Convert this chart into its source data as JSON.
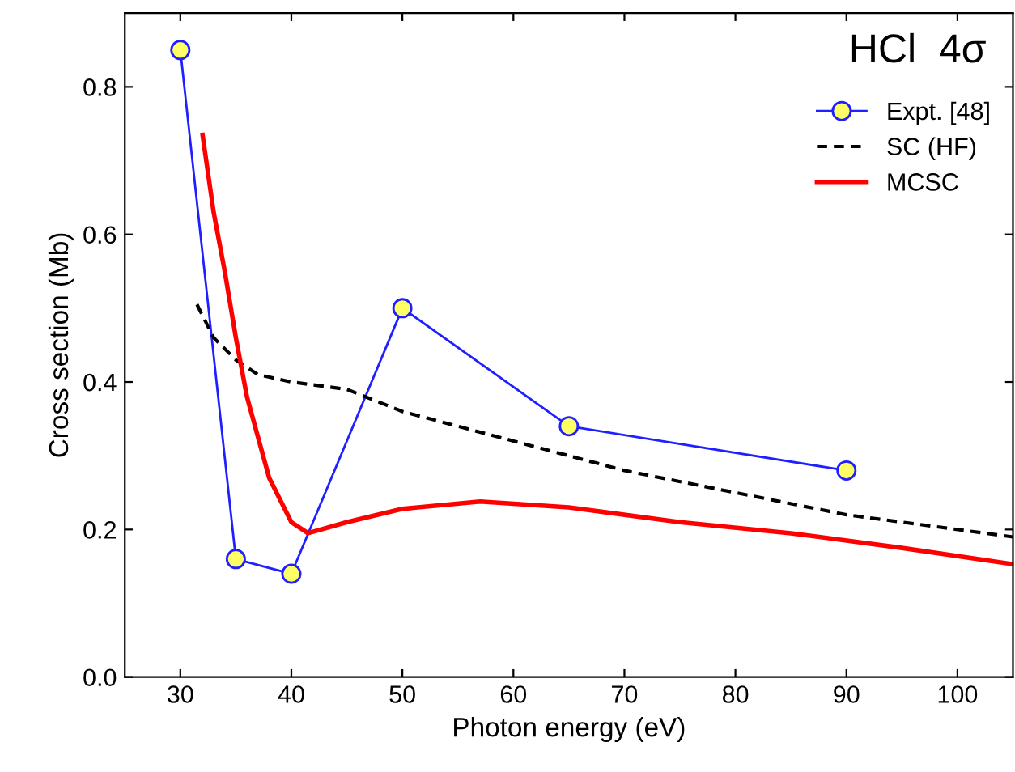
{
  "chart_data": {
    "type": "line",
    "title": "HCl  4σ",
    "xlabel": "Photon energy (eV)",
    "ylabel": "Cross section (Mb)",
    "xlim": [
      25,
      105
    ],
    "xticks": [
      30,
      40,
      50,
      60,
      70,
      80,
      90,
      100
    ],
    "ylim": [
      0,
      0.9
    ],
    "yticks": [
      {
        "value": 0,
        "label": "0.0"
      },
      0.2,
      0.4,
      0.6,
      0.8
    ],
    "grid": false,
    "legend": "top right",
    "series": [
      {
        "name": "Expt. [48]",
        "color": "#1f1fff",
        "marker": "circle",
        "line_style": "solid",
        "x": [
          30,
          35,
          40,
          50,
          65,
          90
        ],
        "values": [
          0.85,
          0.16,
          0.14,
          0.5,
          0.34,
          0.28
        ]
      },
      {
        "name": "SC (HF)",
        "color": "#000000",
        "marker": "none",
        "line_style": "dashed",
        "x": [
          31.5,
          33,
          35,
          37,
          40,
          45,
          50,
          60,
          70,
          80,
          90,
          105
        ],
        "values": [
          0.505,
          0.46,
          0.43,
          0.41,
          0.4,
          0.39,
          0.36,
          0.32,
          0.28,
          0.25,
          0.22,
          0.19
        ]
      },
      {
        "name": "MCSC",
        "color": "#ff0000",
        "marker": "none",
        "line_style": "solid",
        "x": [
          32,
          33,
          34,
          35,
          36,
          38,
          40,
          41.5,
          45,
          50,
          57,
          65,
          75,
          85,
          95,
          105
        ],
        "values": [
          0.735,
          0.63,
          0.55,
          0.46,
          0.38,
          0.27,
          0.21,
          0.195,
          0.21,
          0.228,
          0.238,
          0.23,
          0.21,
          0.195,
          0.175,
          0.153
        ]
      }
    ]
  }
}
